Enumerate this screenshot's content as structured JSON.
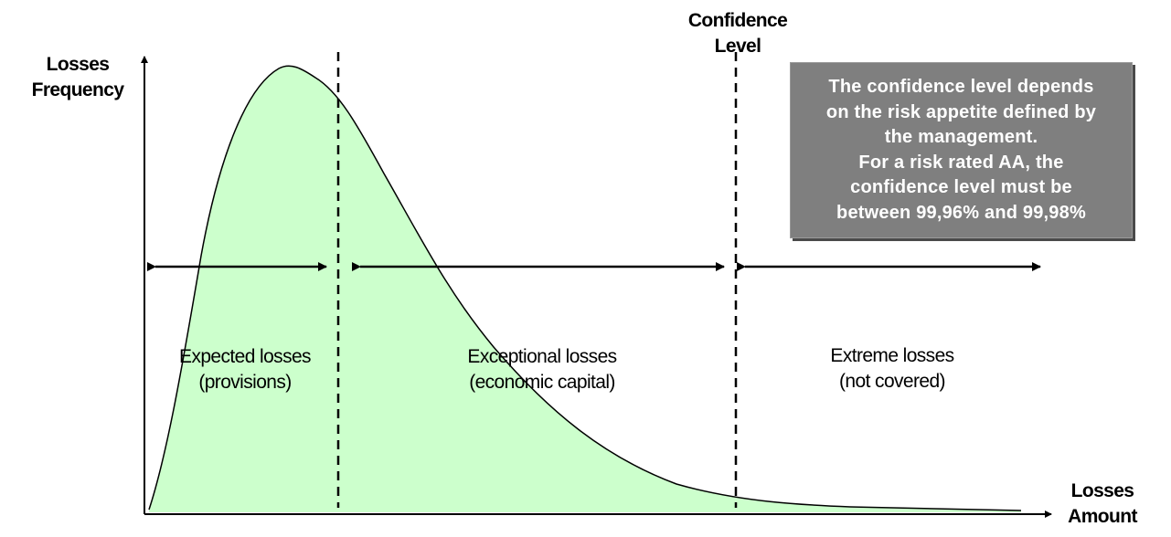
{
  "labels": {
    "y_axis": [
      "Losses",
      "Frequency"
    ],
    "x_axis": [
      "Losses",
      "Amount"
    ],
    "confidence": [
      "Confidence",
      "Level"
    ]
  },
  "regions": {
    "expected": [
      "Expected losses",
      "(provisions)"
    ],
    "exceptional": [
      "Exceptional losses",
      "(economic capital)"
    ],
    "extreme": [
      "Extreme losses",
      "(not covered)"
    ]
  },
  "note": [
    "The confidence level depends",
    "on the risk appetite defined by",
    "the management.",
    "For a risk rated AA, the",
    "confidence level must be",
    "between 99,96% and 99,98%"
  ],
  "colors": {
    "curve_fill": "#ccffcc",
    "note_bg": "#7f7f7f",
    "note_text": "#ffffff"
  }
}
